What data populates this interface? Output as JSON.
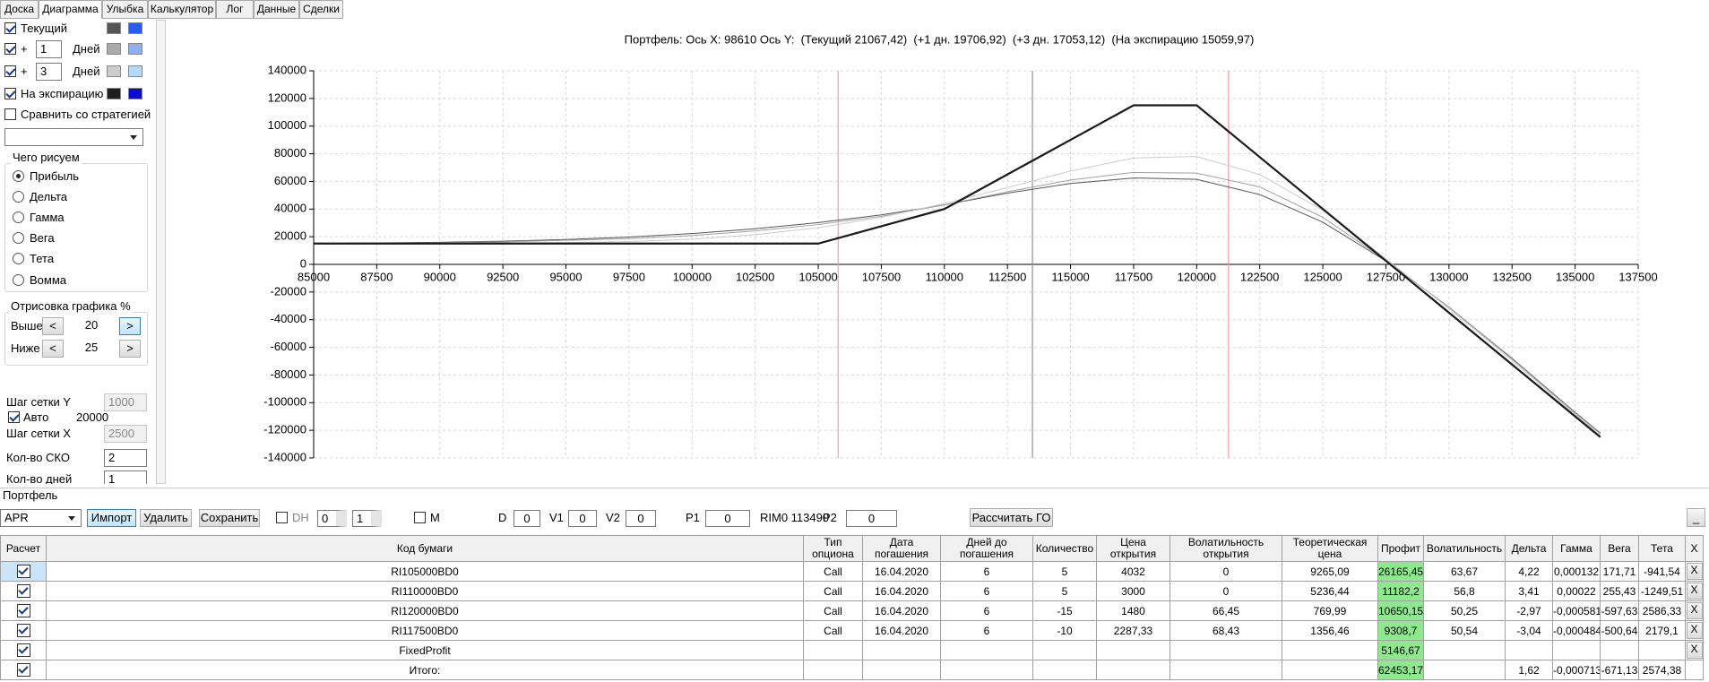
{
  "tabs": [
    "Доска",
    "Диаграмма",
    "Улыбка",
    "Калькулятор",
    "Лог",
    "Данные",
    "Сделки"
  ],
  "left_panel": {
    "series_toggles": [
      {
        "label": "Текущий",
        "checked": true,
        "colors": [
          "#555555",
          "#2b5cf0"
        ]
      },
      {
        "sign": "+",
        "days": 1,
        "unit": "Дней",
        "checked": true,
        "colors": [
          "#aaaaaa",
          "#8fb0f0"
        ]
      },
      {
        "sign": "+",
        "days": 3,
        "unit": "Дней",
        "checked": true,
        "colors": [
          "#cccccc",
          "#b4dcf8"
        ]
      },
      {
        "label": "На экспирацию",
        "checked": true,
        "colors": [
          "#1e1e1e",
          "#0a0ad0"
        ]
      }
    ],
    "compare": {
      "label": "Сравнить со стратегией",
      "checked": false
    },
    "draw_group": {
      "title": "Чего рисуем",
      "options": [
        "Прибыль",
        "Дельта",
        "Гамма",
        "Вега",
        "Тета",
        "Вомма"
      ],
      "selected": 0
    },
    "render_group": {
      "title": "Отрисовка графика %",
      "dec": "<",
      "inc": ">",
      "rows": [
        {
          "label": "Выше",
          "value": 20
        },
        {
          "label": "Ниже",
          "value": 25
        }
      ]
    },
    "grid_y": {
      "label": "Шаг сетки Y",
      "value": 1000
    },
    "auto": {
      "label": "Авто",
      "checked": true,
      "value": 20000
    },
    "grid_x": {
      "label": "Шаг сетки X",
      "value": 2500
    },
    "sko": {
      "label": "Кол-во СКО",
      "value": 2
    },
    "days": {
      "label": "Кол-во дней",
      "value": 1
    }
  },
  "chart_data": {
    "type": "line",
    "title": "Портфель: Ось X: 98610 Ось Y:  (Текущий 21067,42)  (+1 дн. 19706,92)  (+3 дн. 17053,12)  (На экспирацию 15059,97)",
    "x": [
      85000,
      87500,
      90000,
      92500,
      95000,
      97500,
      100000,
      102500,
      105000,
      107500,
      110000,
      112500,
      115000,
      117500,
      120000,
      122500,
      125000,
      127500,
      130000,
      132500,
      135000,
      136000
    ],
    "series": [
      {
        "color": "#555555",
        "width": 1,
        "values": [
          15200,
          15500,
          16000,
          16800,
          18000,
          19800,
          22300,
          25800,
          30200,
          35800,
          43000,
          51500,
          58500,
          62500,
          61500,
          50500,
          30500,
          2500,
          -31000,
          -68000,
          -107000,
          -122000
        ]
      },
      {
        "color": "#a0a0a0",
        "width": 1,
        "values": [
          15100,
          15300,
          15700,
          16300,
          17400,
          18600,
          20800,
          24200,
          28800,
          34800,
          43000,
          52500,
          61000,
          66500,
          66000,
          56000,
          34000,
          3000,
          -31000,
          -68500,
          -107500,
          -122500
        ]
      },
      {
        "color": "#cccccc",
        "width": 1,
        "values": [
          15050,
          15100,
          15200,
          15400,
          15800,
          16500,
          18200,
          21500,
          26500,
          34000,
          44000,
          55500,
          67500,
          77000,
          78000,
          65000,
          39000,
          4000,
          -32000,
          -69500,
          -108500,
          -123500
        ]
      },
      {
        "color": "#1a1a1a",
        "width": 2.2,
        "values": [
          15060,
          15060,
          15060,
          15060,
          15060,
          15060,
          15060,
          15060,
          15060,
          27560,
          40060,
          65060,
          90060,
          115060,
          115060,
          77560,
          40060,
          2560,
          -34940,
          -72440,
          -109940,
          -124940
        ]
      }
    ],
    "reference_lines": [
      {
        "value": 105790,
        "color": "#f4a0a8"
      },
      {
        "value": 113490,
        "color": "#909090"
      },
      {
        "value": 121260,
        "color": "#f4a0a8"
      }
    ],
    "xlim": [
      85000,
      137500
    ],
    "xticks": [
      85000,
      87500,
      90000,
      92500,
      95000,
      97500,
      100000,
      102500,
      105000,
      107500,
      110000,
      112500,
      115000,
      117500,
      120000,
      122500,
      125000,
      127500,
      130000,
      132500,
      135000,
      137500
    ],
    "ylim": [
      -140000,
      140000
    ],
    "yticks": [
      -140000,
      -120000,
      -100000,
      -80000,
      -60000,
      -40000,
      -20000,
      0,
      20000,
      40000,
      60000,
      80000,
      100000,
      120000,
      140000
    ],
    "grid": true
  },
  "portfolio": {
    "title": "Портфель",
    "toolbar": {
      "select": "APR",
      "buttons": [
        "Импорт",
        "Удалить",
        "Сохранить"
      ],
      "dh": {
        "label": "DH",
        "checked": false,
        "spinners": [
          0,
          1
        ]
      },
      "m": {
        "label": "M",
        "checked": false
      },
      "fields": [
        {
          "label": "D",
          "value": 0
        },
        {
          "label": "V1",
          "value": 0
        },
        {
          "label": "V2",
          "value": 0
        },
        {
          "label": "P1",
          "value": 0
        }
      ],
      "instrument": "RIM0 113490",
      "p2": {
        "label": "P2",
        "value": 0
      },
      "calc_button": "Рассчитать ГО",
      "minimize": "_"
    },
    "table": {
      "columns": [
        "Расчет",
        "Код бумаги",
        "Тип опциона",
        "Дата погашения",
        "Дней до погашения",
        "Количество",
        "Цена открытия",
        "Волатильность открытия",
        "Теоретическая цена",
        "Профит",
        "Волатильность",
        "Дельта",
        "Гамма",
        "Вега",
        "Тета",
        "X"
      ],
      "rows": [
        [
          "RI105000BD0",
          "Call",
          "16.04.2020",
          "6",
          "5",
          "4032",
          "0",
          "9265,09",
          "26165,45",
          "63,67",
          "4,22",
          "0,000132",
          "171,71",
          "-941,54"
        ],
        [
          "RI110000BD0",
          "Call",
          "16.04.2020",
          "6",
          "5",
          "3000",
          "0",
          "5236,44",
          "11182,2",
          "56,8",
          "3,41",
          "0,00022",
          "255,43",
          "-1249,51"
        ],
        [
          "RI120000BD0",
          "Call",
          "16.04.2020",
          "6",
          "-15",
          "1480",
          "66,45",
          "769,99",
          "10650,15",
          "50,25",
          "-2,97",
          "-0,000581",
          "-597,63",
          "2586,33"
        ],
        [
          "RI117500BD0",
          "Call",
          "16.04.2020",
          "6",
          "-10",
          "2287,33",
          "68,43",
          "1356,46",
          "9308,7",
          "50,54",
          "-3,04",
          "-0,000484",
          "-500,64",
          "2179,1"
        ],
        [
          "FixedProfit",
          null,
          null,
          null,
          null,
          null,
          null,
          null,
          "5146,67",
          null,
          null,
          null,
          null,
          null
        ],
        [
          "Итого:",
          null,
          null,
          null,
          null,
          null,
          null,
          null,
          "62453,17",
          null,
          "1,62",
          "-0,000713",
          "-671,13",
          "2574,38"
        ]
      ]
    }
  }
}
